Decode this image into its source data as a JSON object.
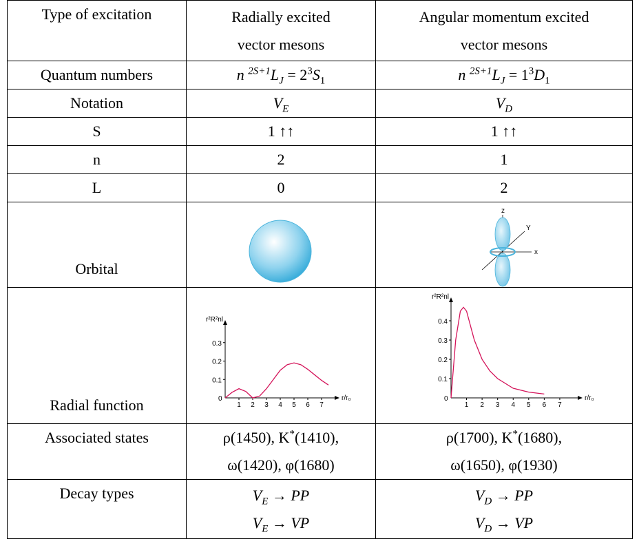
{
  "table": {
    "header": [
      "Type of excitation",
      [
        "Radially excited",
        "vector mesons"
      ],
      [
        "Angular momentum excited",
        "vector mesons"
      ]
    ],
    "rows": [
      [
        "Quantum numbers",
        [
          "n",
          "2S+1",
          "L",
          "J",
          " = 2",
          "3",
          "S",
          "1"
        ],
        [
          "n",
          "2S+1",
          "L",
          "J",
          " = 1",
          "3",
          "D",
          "1"
        ]
      ],
      [
        "Notation",
        [
          "V",
          "E"
        ],
        [
          "V",
          "D"
        ]
      ],
      [
        "S",
        "1 ↑↑",
        "1 ↑↑"
      ],
      [
        "n",
        "2",
        "1"
      ],
      [
        "L",
        "0",
        "2"
      ],
      [
        "Orbital"
      ],
      [
        "Radial function"
      ],
      [
        "Associated states",
        [
          [
            "ρ(1450), K",
            "*",
            "(1410),"
          ],
          [
            "ω(1420), φ(1680)"
          ]
        ],
        [
          [
            "ρ(1700), K",
            "*",
            "(1680),"
          ],
          [
            "ω(1650), φ(1930)"
          ]
        ]
      ],
      [
        "Decay types",
        [
          [
            "V",
            "E",
            " → PP"
          ],
          [
            "V",
            "E",
            " → VP"
          ]
        ],
        [
          [
            "V",
            "D",
            " → PP"
          ],
          [
            "V",
            "D",
            " → VP"
          ]
        ]
      ]
    ]
  },
  "orbital_axes": [
    "z",
    "Y",
    "x"
  ],
  "plots": [
    {
      "y_label": "r²R²nl",
      "x_label": "r/r₀",
      "origin": "0",
      "color": "#d4145a",
      "xlim": [
        0,
        8
      ],
      "ylim": [
        0,
        0.4
      ],
      "xticks": [
        1,
        2,
        3,
        4,
        5,
        6,
        7
      ],
      "yticks": [
        0.1,
        0.2,
        0.3
      ],
      "x": [
        0,
        0.5,
        1,
        1.5,
        2,
        2.5,
        3,
        3.5,
        4,
        4.5,
        5,
        5.5,
        6,
        6.5,
        7,
        7.5
      ],
      "y": [
        0,
        0.03,
        0.05,
        0.035,
        0,
        0.01,
        0.05,
        0.1,
        0.15,
        0.18,
        0.19,
        0.18,
        0.155,
        0.125,
        0.095,
        0.07
      ]
    },
    {
      "y_label": "r²R²nl",
      "x_label": "r/r₀",
      "origin": "0",
      "color": "#d4145a",
      "xlim": [
        0,
        8.2
      ],
      "ylim": [
        0,
        0.5
      ],
      "xticks": [
        1,
        2,
        3,
        4,
        5,
        6,
        7
      ],
      "yticks": [
        0.1,
        0.2,
        0.3,
        0.4
      ],
      "x": [
        0,
        0.3,
        0.6,
        0.8,
        1,
        1.5,
        2,
        2.5,
        3,
        4,
        5,
        6
      ],
      "y": [
        0,
        0.3,
        0.45,
        0.47,
        0.45,
        0.3,
        0.2,
        0.14,
        0.1,
        0.05,
        0.03,
        0.02
      ]
    }
  ]
}
